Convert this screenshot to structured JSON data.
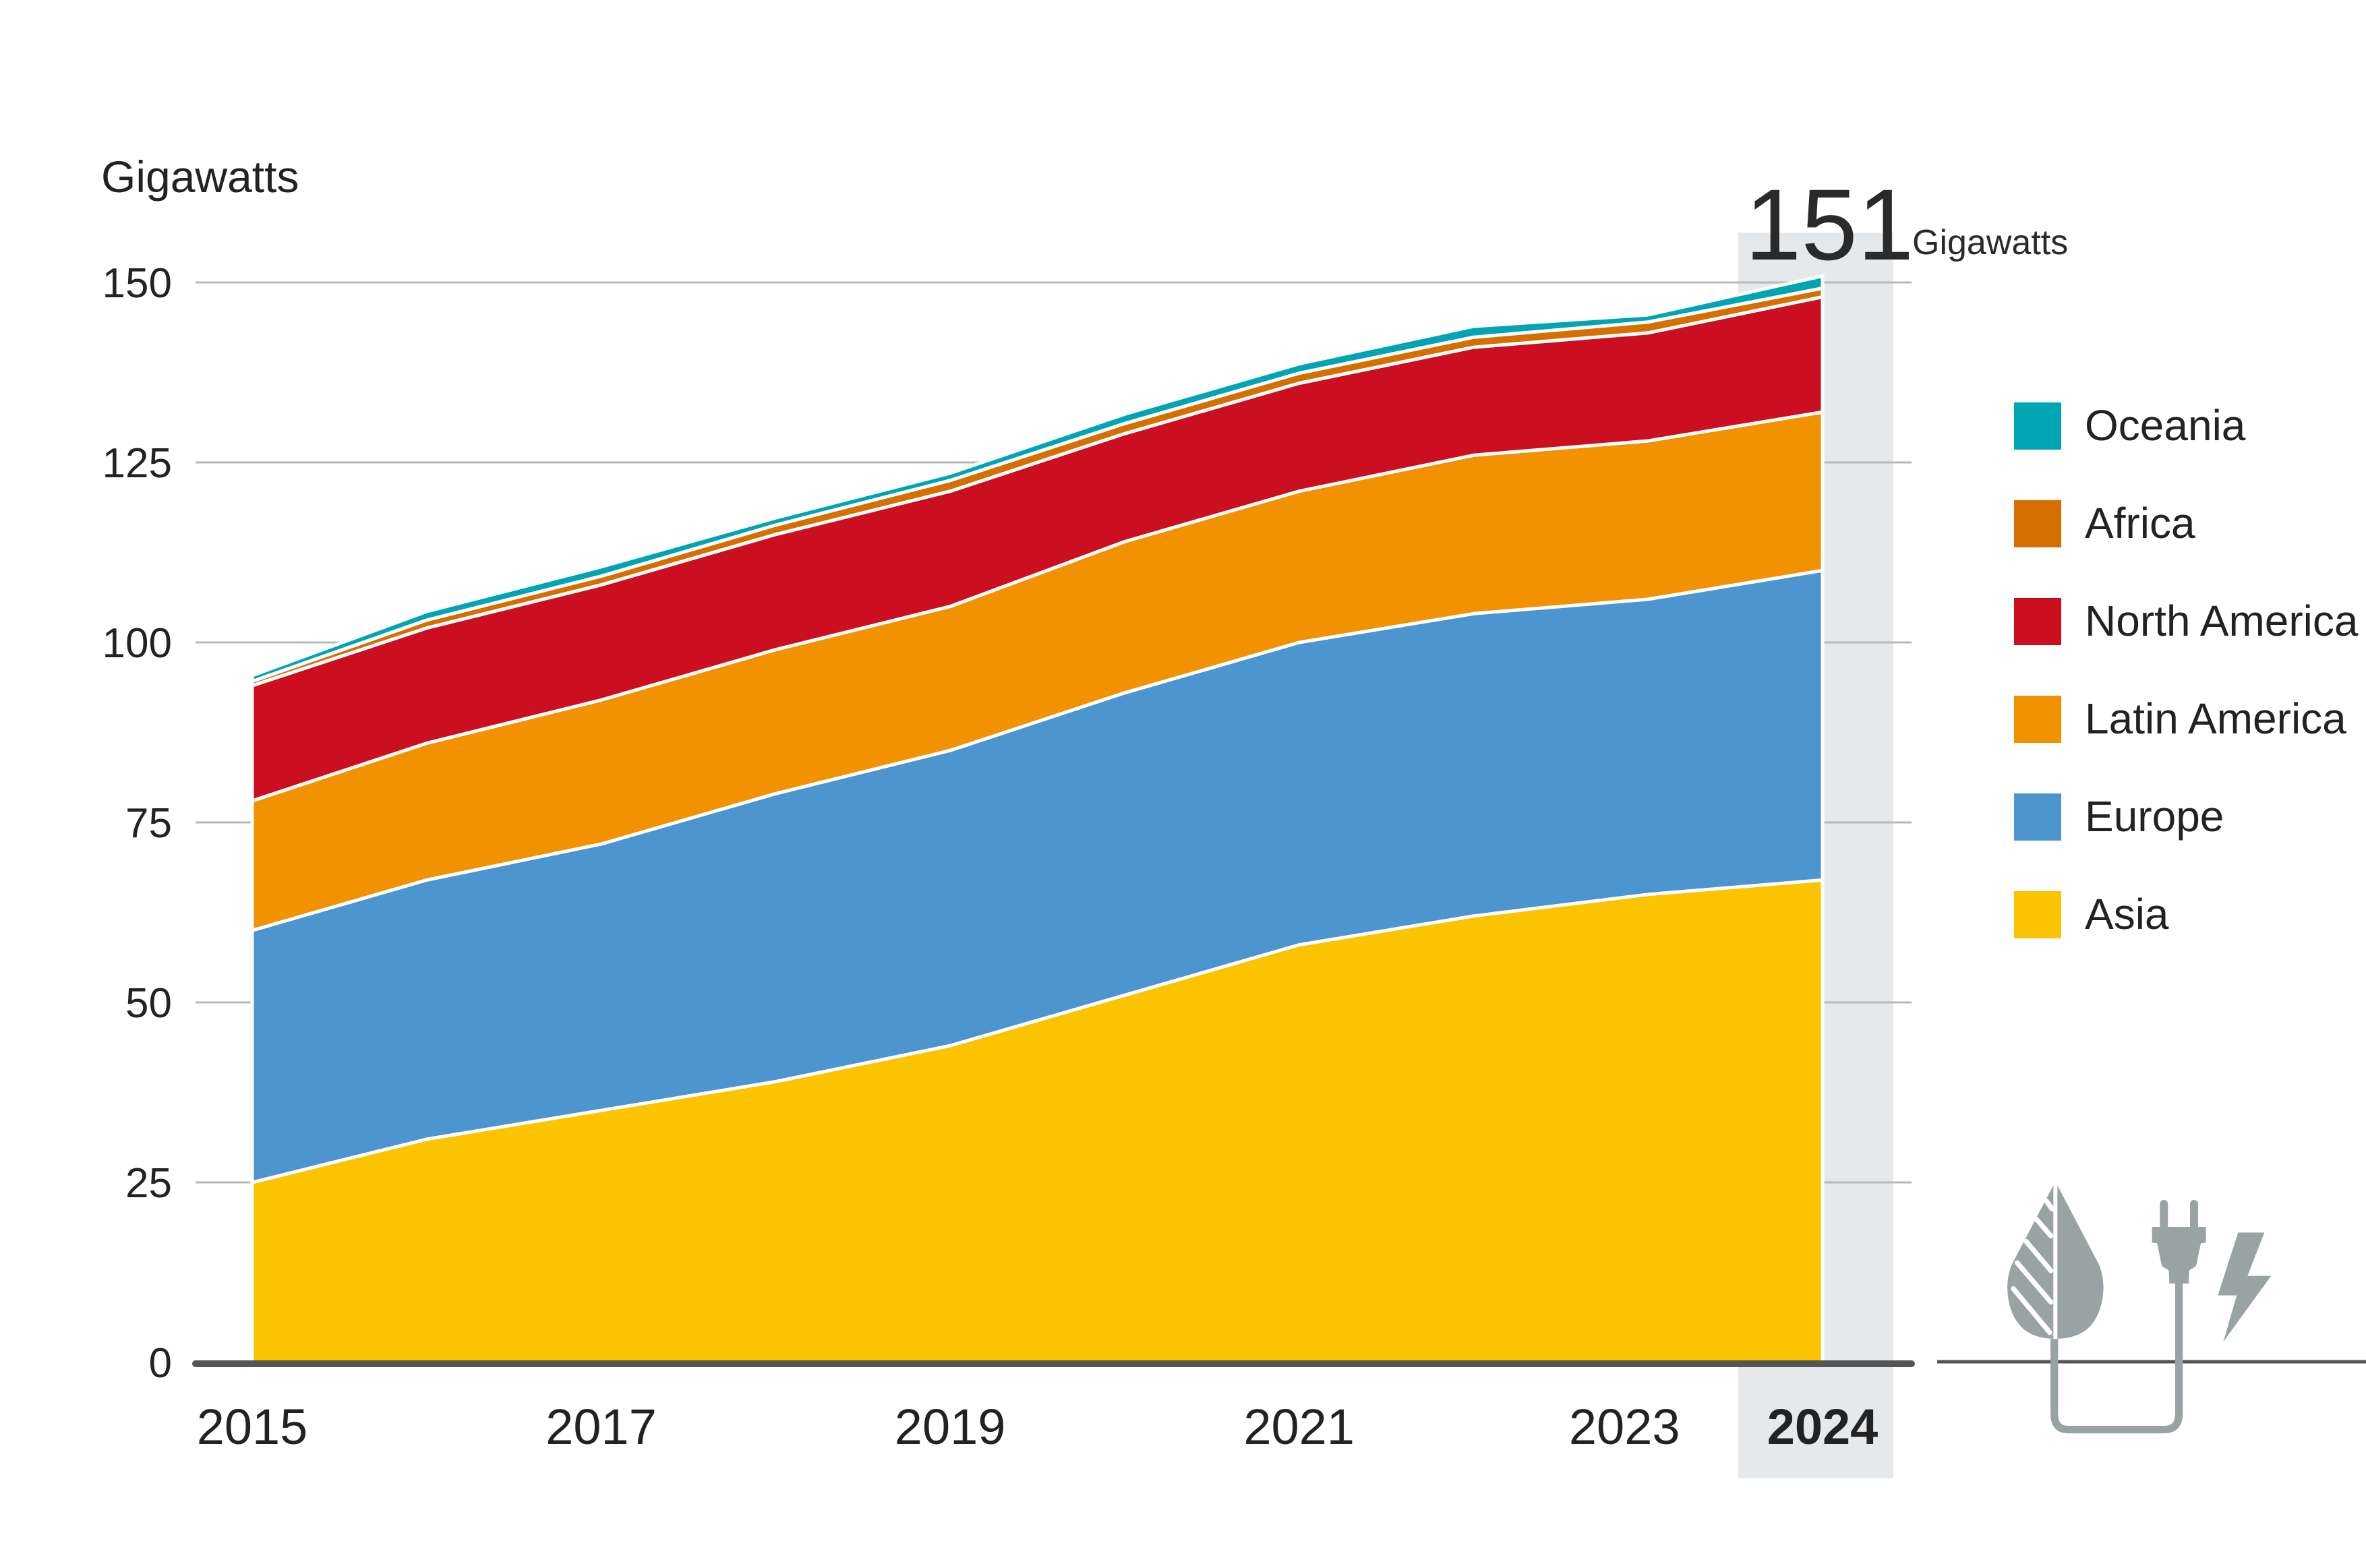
{
  "chart_data": {
    "type": "area",
    "stacked": true,
    "title": "",
    "ylabel": "Gigawatts",
    "xlabel": "",
    "ylim": [
      0,
      150
    ],
    "yticks": [
      0,
      25,
      50,
      75,
      100,
      125,
      150
    ],
    "grid": true,
    "x": [
      2015,
      2016,
      2017,
      2018,
      2019,
      2020,
      2021,
      2022,
      2023,
      2024
    ],
    "xtick_labels": [
      "2015",
      "2017",
      "2019",
      "2021",
      "2023",
      "2024"
    ],
    "highlight_year": "2024",
    "annotation": {
      "value": "151",
      "unit": "Gigawatts"
    },
    "legend_position": "right",
    "series": [
      {
        "name": "Asia",
        "color": "#FBC300",
        "values": [
          25,
          31,
          35,
          39,
          44,
          51,
          58,
          62,
          65,
          67
        ]
      },
      {
        "name": "Europe",
        "color": "#4C95CF",
        "values": [
          35,
          36,
          37,
          40,
          41,
          42,
          42,
          42,
          41,
          43
        ]
      },
      {
        "name": "Latin America",
        "color": "#F29200",
        "values": [
          18,
          19,
          20,
          20,
          20,
          21,
          21,
          22,
          22,
          22
        ]
      },
      {
        "name": "North America",
        "color": "#CC0F20",
        "values": [
          16,
          16,
          16,
          16,
          16,
          15,
          15,
          15,
          15,
          16
        ]
      },
      {
        "name": "Africa",
        "color": "#D46F00",
        "values": [
          0.6,
          1.1,
          1.2,
          1.3,
          1.5,
          1.4,
          1.4,
          1.4,
          1.5,
          1.2
        ]
      },
      {
        "name": "Oceania",
        "color": "#00A5B3",
        "values": [
          0.8,
          1.2,
          1.3,
          1.0,
          1.0,
          1.3,
          1.3,
          1.5,
          1.0,
          1.7
        ]
      }
    ],
    "legend_order": [
      "Oceania",
      "Africa",
      "North America",
      "Latin America",
      "Europe",
      "Asia"
    ]
  },
  "decor": {
    "icons": [
      "leaf-drop-icon",
      "plug-icon",
      "lightning-icon"
    ],
    "icon_color": "#9AA3A3",
    "highlight_band_color": "#E6E9EC"
  }
}
